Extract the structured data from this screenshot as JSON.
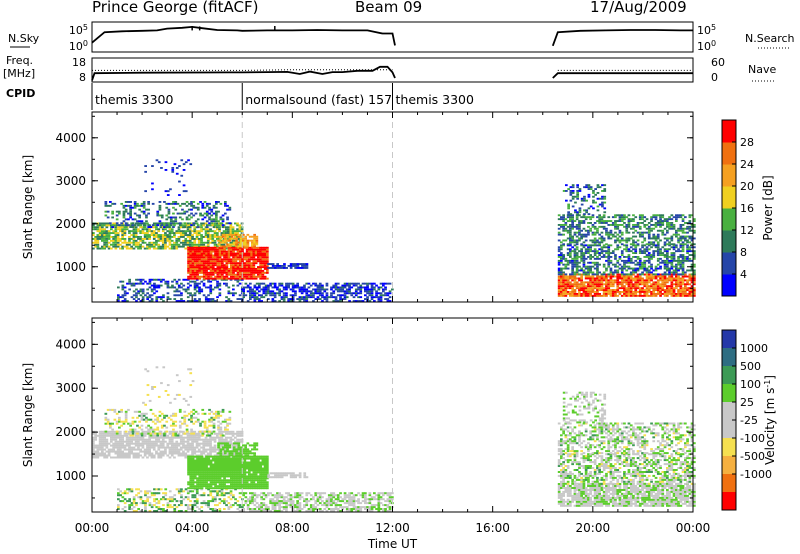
{
  "header": {
    "station": "Prince George (fitACF)",
    "beam": "Beam 09",
    "date": "17/Aug/2009"
  },
  "colors": {
    "plot_background": "#ffffff",
    "axis": "#000000",
    "marker_line": "#c8c8c8",
    "noise_trace": "#000000",
    "power_palette": [
      "#0000ff",
      "#2545a8",
      "#2e7a5a",
      "#49b040",
      "#f0d020",
      "#f5a020",
      "#f07010",
      "#ff0000"
    ],
    "velocity_palette": [
      "#2438a8",
      "#2e6d82",
      "#3c9a55",
      "#5ccd2c",
      "#c8c8c8",
      "#c8c8c8",
      "#f5e050",
      "#f5b040",
      "#f07010",
      "#ff0000"
    ]
  },
  "chart_data": [
    {
      "type": "line",
      "name": "noise-panel",
      "left_label": [
        "N.Sky"
      ],
      "left_ticks": [
        "10^5",
        "10^0"
      ],
      "right_label": "N.Search",
      "right_ticks": [
        "10^5",
        "10^0"
      ],
      "series_left": [
        {
          "segment": [
            [
              0.0,
              1.2
            ],
            [
              0.5,
              3.6
            ],
            [
              1.2,
              3.8
            ],
            [
              2.0,
              3.9
            ],
            [
              2.6,
              4.0
            ],
            [
              3.0,
              4.4
            ],
            [
              3.6,
              4.6
            ],
            [
              4.0,
              4.8
            ],
            [
              4.4,
              4.5
            ],
            [
              5.0,
              4.1
            ],
            [
              5.8,
              4.0
            ],
            [
              6.0,
              3.9
            ],
            [
              7.0,
              4.0
            ],
            [
              8.0,
              4.0
            ],
            [
              9.0,
              4.1
            ],
            [
              10.0,
              4.0
            ],
            [
              11.0,
              4.0
            ],
            [
              11.6,
              3.3
            ],
            [
              12.0,
              3.3
            ],
            [
              12.1,
              0.6
            ]
          ]
        },
        {
          "segment": [
            [
              18.4,
              0.5
            ],
            [
              18.6,
              3.6
            ],
            [
              19.5,
              3.9
            ],
            [
              20.5,
              4.0
            ],
            [
              21.5,
              4.1
            ],
            [
              22.5,
              4.1
            ],
            [
              23.5,
              4.0
            ],
            [
              24.0,
              4.0
            ]
          ]
        }
      ]
    },
    {
      "type": "line",
      "name": "freq-panel",
      "left_label": [
        "Freq.",
        "[MHz]"
      ],
      "left_ticks": [
        "18",
        "8"
      ],
      "right_label": "Nave",
      "right_ticks": [
        "60",
        "0"
      ],
      "freq_series": [
        {
          "segment": [
            [
              0.0,
              6.0
            ],
            [
              0.1,
              10.5
            ],
            [
              2.0,
              10.8
            ],
            [
              5.5,
              11.0
            ],
            [
              6.0,
              11.0
            ],
            [
              7.0,
              11.2
            ],
            [
              7.8,
              11.3
            ],
            [
              8.3,
              10.0
            ],
            [
              8.7,
              11.5
            ],
            [
              9.2,
              10.0
            ],
            [
              9.6,
              11.2
            ],
            [
              10.0,
              11.2
            ],
            [
              10.6,
              12.0
            ],
            [
              11.2,
              12.0
            ],
            [
              11.5,
              14.5
            ],
            [
              11.8,
              14.5
            ],
            [
              12.0,
              11.0
            ],
            [
              12.1,
              7.5
            ]
          ]
        },
        {
          "segment": [
            [
              18.4,
              7.5
            ],
            [
              18.6,
              10.5
            ],
            [
              24.0,
              10.5
            ]
          ]
        }
      ],
      "nave_series": [
        {
          "segment": [
            [
              0.0,
              28
            ],
            [
              2.0,
              28
            ],
            [
              6.0,
              28
            ],
            [
              8.0,
              30
            ],
            [
              10.0,
              30
            ],
            [
              12.0,
              30
            ]
          ]
        },
        {
          "segment": [
            [
              18.6,
              28
            ],
            [
              24.0,
              28
            ]
          ]
        }
      ]
    },
    {
      "type": "table",
      "name": "cpid-panel",
      "label": "CPID",
      "modes": [
        {
          "name": "themis 3300",
          "start": 0.0,
          "end": 6.0
        },
        {
          "name": "normalsound (fast) 157",
          "start": 6.0,
          "end": 12.0
        },
        {
          "name": "themis 3300",
          "start": 12.0,
          "end": 24.0
        }
      ]
    },
    {
      "type": "heatmap",
      "name": "power-panel",
      "ylabel": "Slant Range [km]",
      "yticks": [
        "1000",
        "2000",
        "3000",
        "4000"
      ],
      "ylim": [
        180,
        4600
      ],
      "xlim": [
        0,
        24
      ],
      "colorbar_label": "Power [dB]",
      "colorbar_ticks": [
        "4",
        "8",
        "12",
        "16",
        "20",
        "24",
        "28"
      ],
      "colorbar_range": [
        0,
        32
      ],
      "echo_regions": [
        {
          "t0": 0.0,
          "t1": 6.0,
          "r0": 1400,
          "r1": 2000,
          "value": 14,
          "spread": 6,
          "density": 0.75
        },
        {
          "t0": 0.5,
          "t1": 5.5,
          "r0": 1900,
          "r1": 2500,
          "value": 8,
          "spread": 6,
          "density": 0.35
        },
        {
          "t0": 1.0,
          "t1": 6.0,
          "r0": 180,
          "r1": 700,
          "value": 6,
          "spread": 6,
          "density": 0.4
        },
        {
          "t0": 6.0,
          "t1": 12.0,
          "r0": 180,
          "r1": 600,
          "value": 5,
          "spread": 4,
          "density": 0.6
        },
        {
          "t0": 3.8,
          "t1": 7.0,
          "r0": 700,
          "r1": 1450,
          "value": 29,
          "spread": 3,
          "density": 0.95
        },
        {
          "t0": 5.0,
          "t1": 6.6,
          "r0": 1450,
          "r1": 1750,
          "value": 22,
          "spread": 5,
          "density": 0.7
        },
        {
          "t0": 7.0,
          "t1": 8.6,
          "r0": 950,
          "r1": 1050,
          "value": 5,
          "spread": 3,
          "density": 0.8
        },
        {
          "t0": 2.0,
          "t1": 4.0,
          "r0": 2600,
          "r1": 3500,
          "value": 5,
          "spread": 3,
          "density": 0.08
        },
        {
          "t0": 18.6,
          "t1": 24.0,
          "r0": 300,
          "r1": 800,
          "value": 26,
          "spread": 6,
          "density": 0.85
        },
        {
          "t0": 18.6,
          "t1": 24.0,
          "r0": 800,
          "r1": 1500,
          "value": 9,
          "spread": 6,
          "density": 0.6
        },
        {
          "t0": 18.6,
          "t1": 24.0,
          "r0": 1500,
          "r1": 2200,
          "value": 10,
          "spread": 6,
          "density": 0.5
        },
        {
          "t0": 18.8,
          "t1": 20.5,
          "r0": 2200,
          "r1": 2900,
          "value": 8,
          "spread": 6,
          "density": 0.3
        }
      ]
    },
    {
      "type": "heatmap",
      "name": "velocity-panel",
      "ylabel": "Slant Range [km]",
      "yticks": [
        "1000",
        "2000",
        "3000",
        "4000"
      ],
      "ylim": [
        180,
        4600
      ],
      "xlim": [
        0,
        24
      ],
      "colorbar_label": "Velocity [m s^-1]",
      "colorbar_ticks": [
        "1000",
        "500",
        "100",
        "25",
        "-25",
        "-100",
        "-500",
        "-1000"
      ],
      "echo_regions": [
        {
          "t0": 0.0,
          "t1": 6.0,
          "r0": 1400,
          "r1": 2000,
          "value": 0,
          "spread": 10,
          "density": 0.75
        },
        {
          "t0": 0.5,
          "t1": 5.5,
          "r0": 1900,
          "r1": 2500,
          "value": -60,
          "spread": 200,
          "density": 0.35
        },
        {
          "t0": 1.0,
          "t1": 6.0,
          "r0": 180,
          "r1": 700,
          "value": 0,
          "spread": 300,
          "density": 0.4
        },
        {
          "t0": 6.0,
          "t1": 12.0,
          "r0": 180,
          "r1": 600,
          "value": 0,
          "spread": 80,
          "density": 0.6
        },
        {
          "t0": 3.8,
          "t1": 7.0,
          "r0": 700,
          "r1": 1450,
          "value": 60,
          "spread": 20,
          "density": 0.95
        },
        {
          "t0": 5.0,
          "t1": 6.6,
          "r0": 1450,
          "r1": 1750,
          "value": 60,
          "spread": 20,
          "density": 0.7
        },
        {
          "t0": 7.0,
          "t1": 8.6,
          "r0": 950,
          "r1": 1050,
          "value": 0,
          "spread": 10,
          "density": 0.8
        },
        {
          "t0": 2.0,
          "t1": 4.0,
          "r0": 2600,
          "r1": 3500,
          "value": -80,
          "spread": 100,
          "density": 0.08
        },
        {
          "t0": 18.6,
          "t1": 24.0,
          "r0": 300,
          "r1": 800,
          "value": 0,
          "spread": 60,
          "density": 0.85
        },
        {
          "t0": 18.6,
          "t1": 24.0,
          "r0": 800,
          "r1": 1500,
          "value": 0,
          "spread": 120,
          "density": 0.6
        },
        {
          "t0": 18.6,
          "t1": 24.0,
          "r0": 1500,
          "r1": 2200,
          "value": 0,
          "spread": 120,
          "density": 0.5
        },
        {
          "t0": 18.8,
          "t1": 20.5,
          "r0": 2200,
          "r1": 2900,
          "value": 0,
          "spread": 80,
          "density": 0.3
        }
      ]
    }
  ],
  "time_axis": {
    "label": "Time UT",
    "ticks": [
      "00:00",
      "04:00",
      "08:00",
      "12:00",
      "16:00",
      "20:00",
      "00:00"
    ],
    "mode_change_markers": [
      6.0,
      12.0
    ]
  }
}
